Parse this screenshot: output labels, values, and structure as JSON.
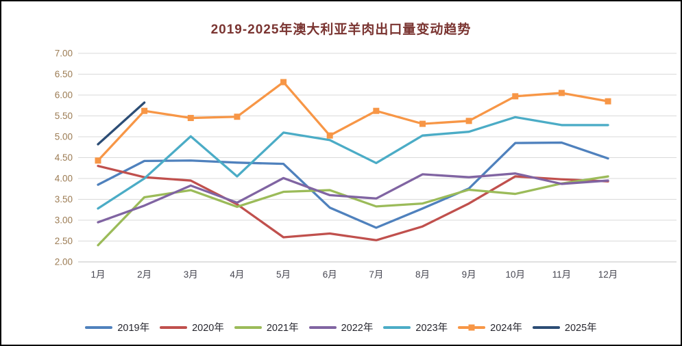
{
  "frame": {
    "background": "#ffffff",
    "border_color": "#000000"
  },
  "chart_data": {
    "type": "line",
    "title": "2019-2025年澳大利亚羊肉出口量变动趋势",
    "title_color": "#7a3431",
    "categories": [
      "1月",
      "2月",
      "3月",
      "4月",
      "5月",
      "6月",
      "7月",
      "8月",
      "9月",
      "10月",
      "11月",
      "12月"
    ],
    "series": [
      {
        "name": "2019年",
        "color": "#4F81BD",
        "marker": "none",
        "values": [
          3.85,
          4.42,
          4.43,
          4.38,
          4.35,
          3.3,
          2.82,
          3.28,
          3.76,
          4.85,
          4.86,
          4.48
        ]
      },
      {
        "name": "2020年",
        "color": "#C0504D",
        "marker": "none",
        "values": [
          4.3,
          4.03,
          3.95,
          3.38,
          2.59,
          2.68,
          2.52,
          2.85,
          3.4,
          4.05,
          3.98,
          3.93
        ]
      },
      {
        "name": "2021年",
        "color": "#9BBB59",
        "marker": "none",
        "values": [
          2.4,
          3.55,
          3.72,
          3.32,
          3.68,
          3.72,
          3.33,
          3.4,
          3.73,
          3.63,
          3.88,
          4.05
        ]
      },
      {
        "name": "2022年",
        "color": "#8064A2",
        "marker": "none",
        "values": [
          2.95,
          3.35,
          3.83,
          3.42,
          4.01,
          3.6,
          3.52,
          4.1,
          4.03,
          4.12,
          3.87,
          3.95
        ]
      },
      {
        "name": "2023年",
        "color": "#4BACC6",
        "marker": "none",
        "values": [
          3.28,
          4.0,
          5.01,
          4.05,
          5.1,
          4.92,
          4.37,
          5.03,
          5.12,
          5.47,
          5.28,
          5.28
        ]
      },
      {
        "name": "2024年",
        "color": "#F79646",
        "marker": "square",
        "values": [
          4.43,
          5.62,
          5.45,
          5.48,
          6.31,
          5.03,
          5.62,
          5.31,
          5.38,
          5.97,
          6.05,
          5.85
        ]
      },
      {
        "name": "2025年",
        "color": "#2C4D75",
        "marker": "none",
        "values": [
          4.82,
          5.82,
          null,
          null,
          null,
          null,
          null,
          null,
          null,
          null,
          null,
          null
        ]
      }
    ],
    "y_axis": {
      "min": 2.0,
      "max": 7.0,
      "step": 0.5,
      "tick_labels": [
        "7.00",
        "6.50",
        "6.00",
        "5.50",
        "5.00",
        "4.50",
        "4.00",
        "3.50",
        "3.00",
        "2.50",
        "2.00"
      ],
      "label_color": "#9c7c54"
    },
    "x_axis": {
      "label_color": "#474752"
    },
    "grid": {
      "color": "#d9d9d9",
      "bottom_axis_color": "#c0c0c0",
      "show_horizontal": true,
      "show_vertical": false
    },
    "legend": {
      "position": "bottom"
    }
  }
}
